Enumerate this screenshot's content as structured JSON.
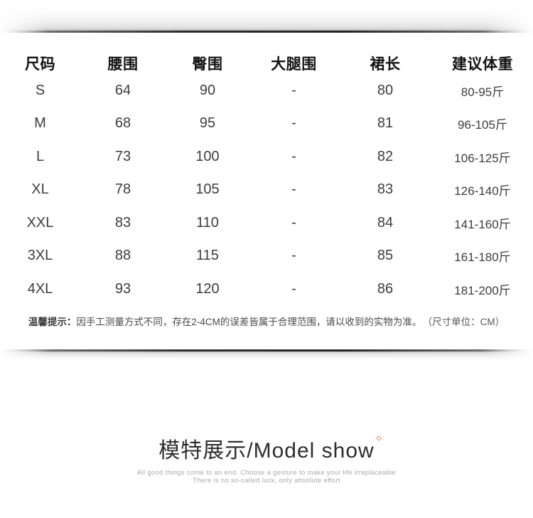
{
  "chart_data": {
    "type": "table",
    "columns": [
      "尺码",
      "腰围",
      "臀围",
      "大腿围",
      "裙长",
      "建议体重"
    ],
    "rows": [
      [
        "S",
        "64",
        "90",
        "-",
        "80",
        "80-95斤"
      ],
      [
        "M",
        "68",
        "95",
        "-",
        "81",
        "96-105斤"
      ],
      [
        "L",
        "73",
        "100",
        "-",
        "82",
        "106-125斤"
      ],
      [
        "XL",
        "78",
        "105",
        "-",
        "83",
        "126-140斤"
      ],
      [
        "XXL",
        "83",
        "110",
        "-",
        "84",
        "141-160斤"
      ],
      [
        "3XL",
        "88",
        "115",
        "-",
        "85",
        "161-180斤"
      ],
      [
        "4XL",
        "93",
        "120",
        "-",
        "86",
        "181-200斤"
      ]
    ],
    "unit": "CM"
  },
  "note": {
    "prefix": "温馨提示：",
    "body": "因手工测量方式不同，存在2-4CM的误差皆属于合理范围，请以收到的实物为准。",
    "unit": "（尺寸单位：CM）"
  },
  "footer": {
    "title": "模特展示/Model show",
    "tagline_line1": "All good things come to an end. Choose a gesture to make your life irreplaceable",
    "tagline_line2": "There is no so-called luck, only absolute effort"
  },
  "colors": {
    "accent_ring": "#ea7a58",
    "header_text": "#121212",
    "body_text": "#3d3d3d",
    "note_text": "#4a4a4a",
    "tagline_text": "#a9a9a9"
  }
}
